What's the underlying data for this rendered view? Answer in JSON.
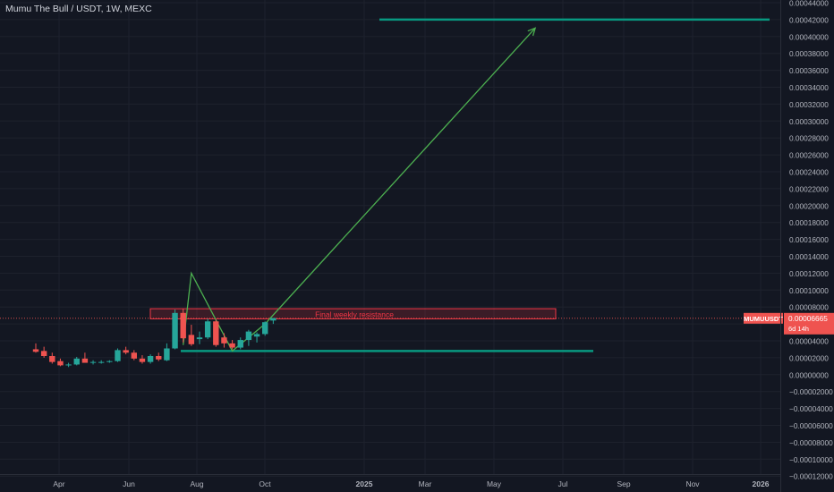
{
  "header": {
    "title": "Mumu The Bull / USDT, 1W, MEXC"
  },
  "price_label": {
    "symbol": "MUMUUSDT",
    "value": "0.00006665",
    "countdown": "6d 14h"
  },
  "annotation": {
    "resistance_label": "Final weekly resistance"
  },
  "colors": {
    "background": "#131722",
    "up": "#26a69a",
    "down": "#ef5350",
    "line": "#089981",
    "arrow": "#4caf50",
    "resistance_box": "#f23645"
  },
  "chart_data": {
    "type": "candlestick",
    "symbol": "MUMUUSDT",
    "timeframe": "1W",
    "exchange": "MEXC",
    "y_ticks": [
      "0.00044000",
      "0.00042000",
      "0.00040000",
      "0.00038000",
      "0.00036000",
      "0.00034000",
      "0.00032000",
      "0.00030000",
      "0.00028000",
      "0.00026000",
      "0.00024000",
      "0.00022000",
      "0.00020000",
      "0.00018000",
      "0.00016000",
      "0.00014000",
      "0.00012000",
      "0.00010000",
      "0.00008000",
      "0.00006000",
      "0.00004000",
      "0.00002000",
      "0.00000000",
      "−0.00002000",
      "−0.00004000",
      "−0.00006000",
      "−0.00008000",
      "−0.00010000",
      "−0.00012000"
    ],
    "x_ticks": [
      "Apr",
      "Jun",
      "Aug",
      "Oct",
      "2025",
      "Mar",
      "May",
      "Jul",
      "Sep",
      "Nov",
      "2026"
    ],
    "ylim": [
      -0.00012,
      0.00044
    ],
    "candles": [
      {
        "o": 3e-05,
        "h": 3.7e-05,
        "l": 2.6e-05,
        "c": 2.7e-05
      },
      {
        "o": 2.8e-05,
        "h": 3.3e-05,
        "l": 2e-05,
        "c": 2.2e-05
      },
      {
        "o": 2.2e-05,
        "h": 2.6e-05,
        "l": 1.3e-05,
        "c": 1.5e-05
      },
      {
        "o": 1.6e-05,
        "h": 1.9e-05,
        "l": 1e-05,
        "c": 1.1e-05
      },
      {
        "o": 1.1e-05,
        "h": 1.4e-05,
        "l": 9e-06,
        "c": 1.2e-05
      },
      {
        "o": 1.2e-05,
        "h": 2.1e-05,
        "l": 1.1e-05,
        "c": 1.9e-05
      },
      {
        "o": 1.9e-05,
        "h": 2.6e-05,
        "l": 1.6e-05,
        "c": 1.4e-05
      },
      {
        "o": 1.4e-05,
        "h": 1.7e-05,
        "l": 1.2e-05,
        "c": 1.5e-05
      },
      {
        "o": 1.5e-05,
        "h": 1.7e-05,
        "l": 1.3e-05,
        "c": 1.5e-05
      },
      {
        "o": 1.5e-05,
        "h": 1.7e-05,
        "l": 1.4e-05,
        "c": 1.6e-05
      },
      {
        "o": 1.6e-05,
        "h": 3.1e-05,
        "l": 1.5e-05,
        "c": 2.9e-05
      },
      {
        "o": 2.9e-05,
        "h": 3.3e-05,
        "l": 2.4e-05,
        "c": 2.6e-05
      },
      {
        "o": 2.6e-05,
        "h": 2.9e-05,
        "l": 1.7e-05,
        "c": 1.9e-05
      },
      {
        "o": 1.9e-05,
        "h": 2.3e-05,
        "l": 1.3e-05,
        "c": 1.5e-05
      },
      {
        "o": 1.5e-05,
        "h": 2.4e-05,
        "l": 1.3e-05,
        "c": 2.2e-05
      },
      {
        "o": 2.2e-05,
        "h": 2.6e-05,
        "l": 1.6e-05,
        "c": 1.8e-05
      },
      {
        "o": 1.7e-05,
        "h": 3.7e-05,
        "l": 1.6e-05,
        "c": 3.1e-05
      },
      {
        "o": 3.1e-05,
        "h": 7.7e-05,
        "l": 3e-05,
        "c": 7.3e-05
      },
      {
        "o": 7.3e-05,
        "h": 7.8e-05,
        "l": 3.8e-05,
        "c": 4.3e-05
      },
      {
        "o": 4.7e-05,
        "h": 5.9e-05,
        "l": 3.4e-05,
        "c": 3.6e-05
      },
      {
        "o": 4.2e-05,
        "h": 5.1e-05,
        "l": 3.6e-05,
        "c": 4.4e-05
      },
      {
        "o": 4.4e-05,
        "h": 6.6e-05,
        "l": 4.2e-05,
        "c": 6.3e-05
      },
      {
        "o": 6.3e-05,
        "h": 6.5e-05,
        "l": 3.3e-05,
        "c": 3.5e-05
      },
      {
        "o": 4.4e-05,
        "h": 4.9e-05,
        "l": 3.2e-05,
        "c": 3.7e-05
      },
      {
        "o": 3.7e-05,
        "h": 4.1e-05,
        "l": 3e-05,
        "c": 3.2e-05
      },
      {
        "o": 3.2e-05,
        "h": 4.4e-05,
        "l": 3e-05,
        "c": 4.1e-05
      },
      {
        "o": 4.1e-05,
        "h": 5.3e-05,
        "l": 3.4e-05,
        "c": 5.1e-05
      },
      {
        "o": 4.5e-05,
        "h": 5e-05,
        "l": 3.8e-05,
        "c": 4.8e-05
      },
      {
        "o": 4.8e-05,
        "h": 6.3e-05,
        "l": 4.6e-05,
        "c": 6.2e-05
      },
      {
        "o": 6.4e-05,
        "h": 6.7e-05,
        "l": 6e-05,
        "c": 6.7e-05
      }
    ],
    "levels": {
      "target": 0.00042,
      "support": 2.8e-05,
      "resistance_top": 7.8e-05,
      "resistance_bottom": 6.6e-05,
      "current": 6.665e-05
    },
    "pattern_points": [
      {
        "week": 18,
        "price": 3.5e-05
      },
      {
        "week": 19,
        "price": 0.00012
      },
      {
        "week": 24,
        "price": 2.8e-05
      },
      {
        "week": 28,
        "price": 6e-05
      },
      {
        "week": 61,
        "price": 0.00041
      }
    ]
  }
}
